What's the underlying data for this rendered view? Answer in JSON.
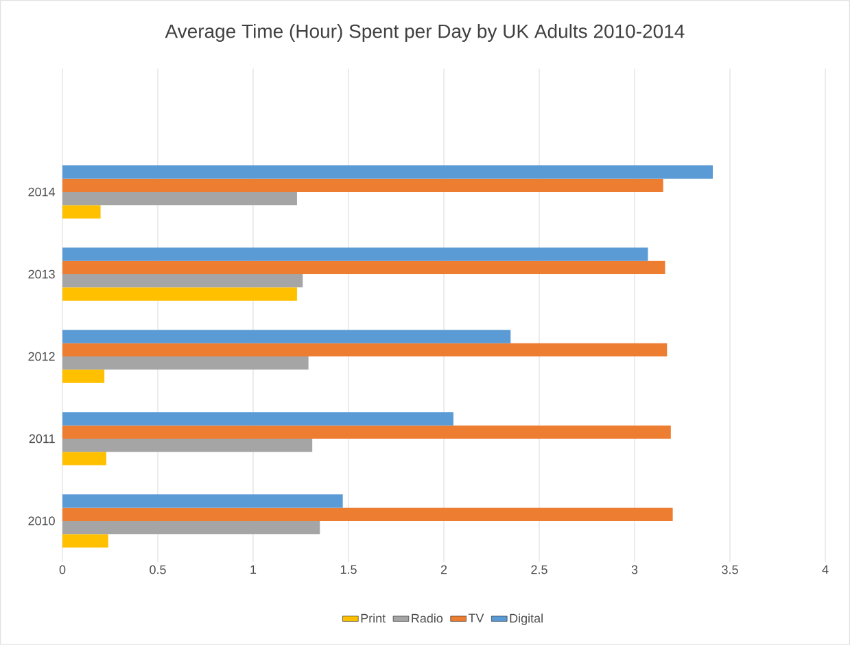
{
  "chart_data": {
    "type": "bar",
    "orientation": "horizontal",
    "title": "Average Time (Hour)  Spent per Day by UK Adults 2010-2014",
    "categories": [
      "2014",
      "2013",
      "2012",
      "2011",
      "2010"
    ],
    "series": [
      {
        "name": "Print",
        "color": "#ffc000",
        "values": [
          0.2,
          1.23,
          0.22,
          0.23,
          0.24
        ]
      },
      {
        "name": "Radio",
        "color": "#a5a5a5",
        "values": [
          1.23,
          1.26,
          1.29,
          1.31,
          1.35
        ]
      },
      {
        "name": "TV",
        "color": "#ed7d31",
        "values": [
          3.15,
          3.16,
          3.17,
          3.19,
          3.2
        ]
      },
      {
        "name": "Digital",
        "color": "#5b9bd5",
        "values": [
          3.41,
          3.07,
          2.35,
          2.05,
          1.47
        ]
      }
    ],
    "xlim": [
      0,
      4
    ],
    "xticks": [
      0,
      0.5,
      1,
      1.5,
      2,
      2.5,
      3,
      3.5,
      4
    ],
    "grid": "x",
    "legend": "bottom"
  }
}
